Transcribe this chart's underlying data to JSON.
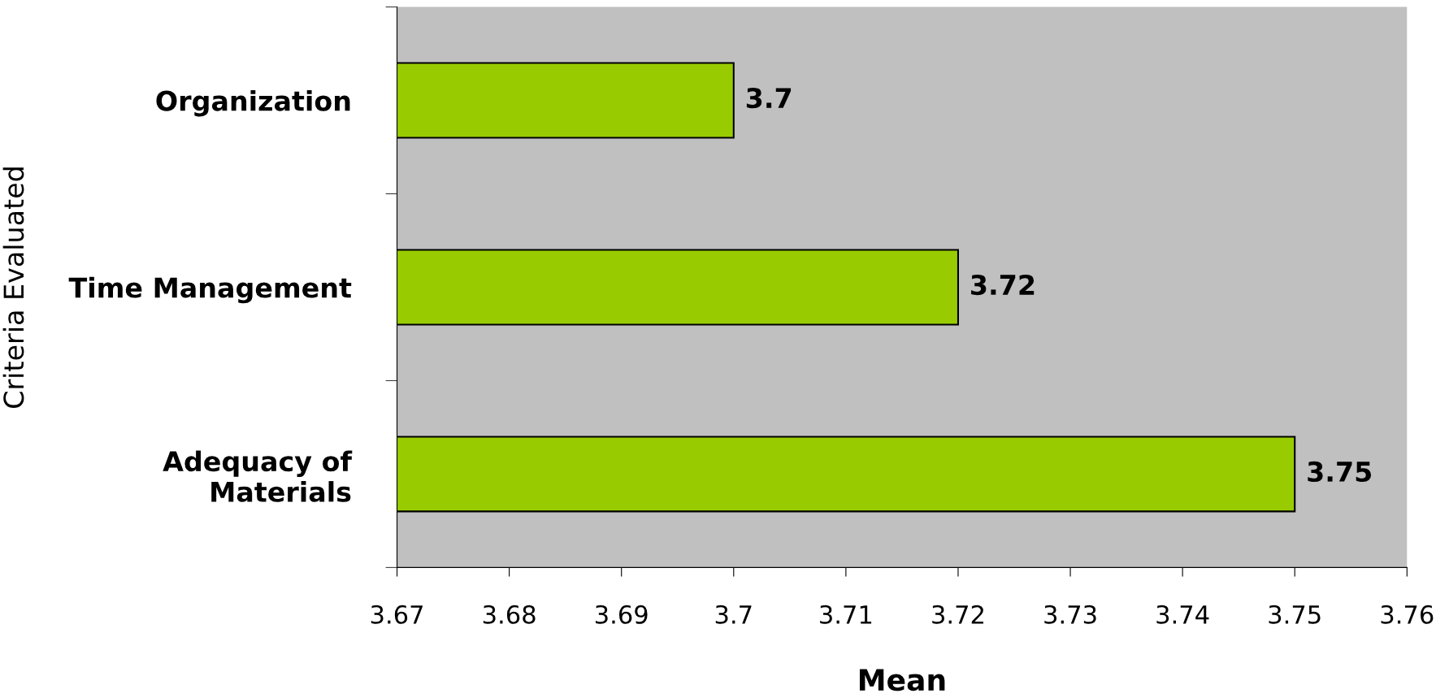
{
  "chart_data": {
    "type": "bar",
    "orientation": "horizontal",
    "xlabel": "Mean",
    "ylabel": "Criteria Evaluated",
    "categories": [
      "Organization",
      "Time Management",
      "Adequacy of\nMaterials"
    ],
    "values": [
      3.7,
      3.72,
      3.75
    ],
    "color": "#99cc00",
    "data_labels": true,
    "xlim": [
      3.67,
      3.76
    ],
    "xticks": [
      3.67,
      3.68,
      3.69,
      3.7,
      3.71,
      3.72,
      3.73,
      3.74,
      3.75,
      3.76
    ],
    "grid": false
  }
}
